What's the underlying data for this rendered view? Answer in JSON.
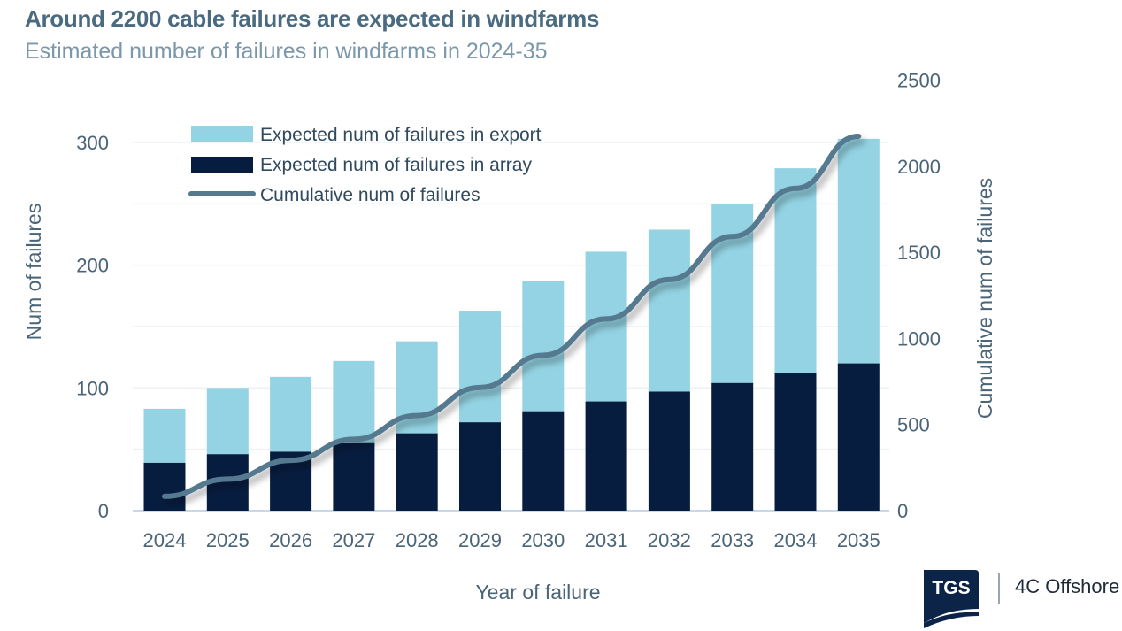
{
  "title": "Around 2200 cable failures are expected in windfarms",
  "subtitle": "Estimated number of failures in windfarms in 2024-35",
  "logo": {
    "mark": "TGS",
    "brand": "4C Offshore"
  },
  "colors": {
    "export": "#93d3e3",
    "array": "#071d40",
    "cumulative": "#557a90"
  },
  "chart_data": {
    "type": "bar",
    "stacked": true,
    "title": "Around 2200 cable failures are expected in windfarms",
    "subtitle": "Estimated number of failures in windfarms in 2024-35",
    "xlabel": "Year of failure",
    "ylabel": "Num of failures",
    "y2label": "Cumulative num of failures",
    "categories": [
      "2024",
      "2025",
      "2026",
      "2027",
      "2028",
      "2029",
      "2030",
      "2031",
      "2032",
      "2033",
      "2034",
      "2035"
    ],
    "ylim": [
      0,
      300
    ],
    "yticks": [
      0,
      100,
      200,
      300
    ],
    "y2lim": [
      0,
      2500
    ],
    "y2ticks": [
      0,
      500,
      1000,
      1500,
      2000,
      2500
    ],
    "grid": true,
    "legend_position": "top-left",
    "series": [
      {
        "name": "Expected num of failures in array",
        "type": "bar",
        "values": [
          39,
          46,
          48,
          55,
          63,
          72,
          81,
          89,
          97,
          104,
          112,
          120
        ]
      },
      {
        "name": "Expected num of failures in export",
        "type": "bar",
        "values": [
          44,
          54,
          61,
          67,
          75,
          91,
          106,
          122,
          132,
          146,
          167,
          183
        ]
      },
      {
        "name": "Cumulative num of failures",
        "type": "line",
        "axis": "right",
        "values": [
          83,
          183,
          292,
          414,
          552,
          715,
          902,
          1113,
          1342,
          1592,
          1871,
          2174
        ]
      }
    ],
    "legend": [
      "Expected num of failures in export",
      "Expected num of failures in array",
      "Cumulative num of failures"
    ]
  }
}
